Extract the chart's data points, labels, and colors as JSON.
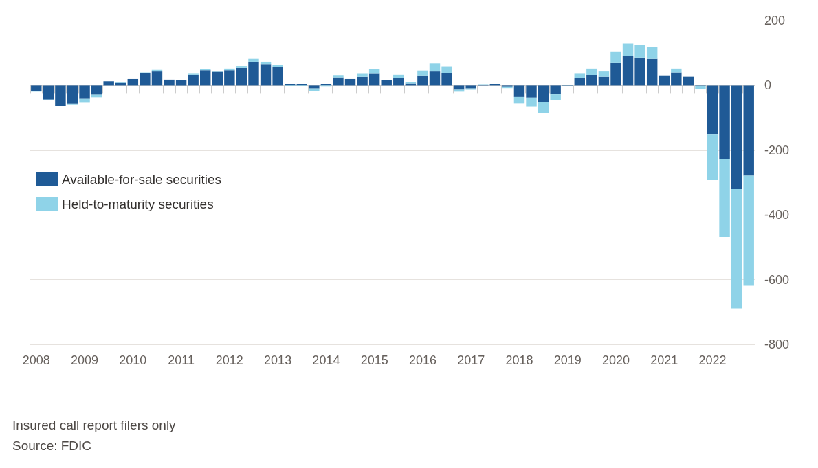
{
  "chart_data": {
    "type": "bar",
    "stacked": true,
    "categories": [
      "2008",
      null,
      null,
      null,
      "2009",
      null,
      null,
      null,
      "2010",
      null,
      null,
      null,
      "2011",
      null,
      null,
      null,
      "2012",
      null,
      null,
      null,
      "2013",
      null,
      null,
      null,
      "2014",
      null,
      null,
      null,
      "2015",
      null,
      null,
      null,
      "2016",
      null,
      null,
      null,
      "2017",
      null,
      null,
      null,
      "2018",
      null,
      null,
      null,
      "2019",
      null,
      null,
      null,
      "2020",
      null,
      null,
      null,
      "2021",
      null,
      null,
      null,
      "2022",
      null,
      null,
      null
    ],
    "series": [
      {
        "name": "Available-for-sale securities",
        "color": "#1f5a96",
        "values": [
          -17,
          -43,
          -63,
          -56,
          -41,
          -28,
          13,
          8,
          20,
          37,
          43,
          18,
          17,
          33,
          47,
          42,
          47,
          54,
          73,
          66,
          56,
          5,
          5,
          -9,
          5,
          25,
          20,
          27,
          36,
          16,
          22,
          6,
          29,
          43,
          39,
          -13,
          -9,
          1,
          3,
          -5,
          -35,
          -39,
          -50,
          -27,
          -1,
          22,
          32,
          27,
          69,
          90,
          86,
          82,
          29,
          40,
          27,
          -1,
          -152,
          -227,
          -320,
          -278
        ]
      },
      {
        "name": "Held-to-maturity securities",
        "color": "#8fd3e8",
        "values": [
          -2,
          -2,
          -1,
          -4,
          -12,
          -10,
          0,
          2,
          0,
          3,
          5,
          0,
          0,
          3,
          3,
          1,
          5,
          6,
          9,
          7,
          7,
          -2,
          -2,
          -8,
          -4,
          5,
          0,
          9,
          14,
          0,
          11,
          5,
          17,
          25,
          20,
          -6,
          -4,
          1,
          0,
          -3,
          -20,
          -27,
          -34,
          -17,
          -2,
          14,
          20,
          16,
          34,
          39,
          38,
          36,
          0,
          12,
          0,
          -9,
          -141,
          -241,
          -369,
          -341
        ]
      }
    ],
    "ylim": [
      -800,
      200
    ],
    "yticks": [
      -800,
      -600,
      -400,
      -200,
      0,
      200
    ],
    "grid": "y",
    "legend": "left",
    "annotations": [
      "Insured call report filers only",
      "Source: FDIC"
    ]
  }
}
